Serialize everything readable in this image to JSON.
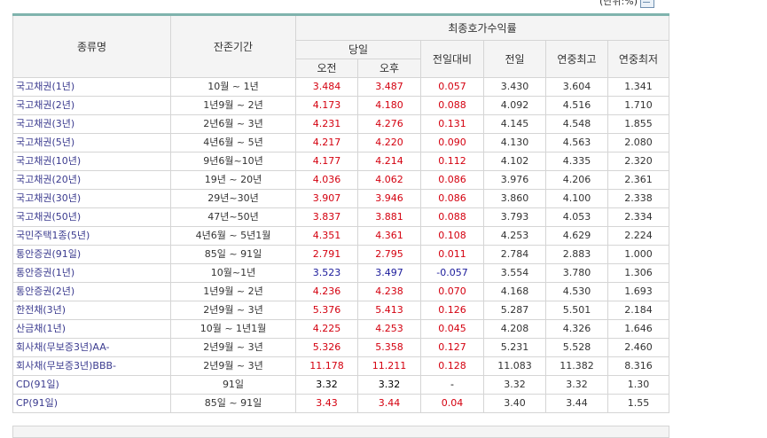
{
  "unit_label": "(단위:%)",
  "icons": {
    "export": "excel-export-icon"
  },
  "header": {
    "name": "종류명",
    "term": "잔존기간",
    "group": "최종호가수익률",
    "today": "당일",
    "am": "오전",
    "pm": "오후",
    "diff": "전일대비",
    "prev": "전일",
    "year_high": "연중최고",
    "year_low": "연중최저"
  },
  "colors": {
    "up": "#d4000f",
    "down": "#1b1b9b",
    "header_bg": "#f4f4f4",
    "top_border": "#7fb3ad"
  },
  "rows": [
    {
      "name": "국고채권(1년)",
      "term": "10월 ~ 1년",
      "am": "3.484",
      "pm": "3.487",
      "diff": "0.057",
      "prev": "3.430",
      "high": "3.604",
      "low": "1.341",
      "dir": "up"
    },
    {
      "name": "국고채권(2년)",
      "term": "1년9월 ~ 2년",
      "am": "4.173",
      "pm": "4.180",
      "diff": "0.088",
      "prev": "4.092",
      "high": "4.516",
      "low": "1.710",
      "dir": "up"
    },
    {
      "name": "국고채권(3년)",
      "term": "2년6월 ~ 3년",
      "am": "4.231",
      "pm": "4.276",
      "diff": "0.131",
      "prev": "4.145",
      "high": "4.548",
      "low": "1.855",
      "dir": "up"
    },
    {
      "name": "국고채권(5년)",
      "term": "4년6월 ~ 5년",
      "am": "4.217",
      "pm": "4.220",
      "diff": "0.090",
      "prev": "4.130",
      "high": "4.563",
      "low": "2.080",
      "dir": "up"
    },
    {
      "name": "국고채권(10년)",
      "term": "9년6월~10년",
      "am": "4.177",
      "pm": "4.214",
      "diff": "0.112",
      "prev": "4.102",
      "high": "4.335",
      "low": "2.320",
      "dir": "up"
    },
    {
      "name": "국고채권(20년)",
      "term": "19년 ~ 20년",
      "am": "4.036",
      "pm": "4.062",
      "diff": "0.086",
      "prev": "3.976",
      "high": "4.206",
      "low": "2.361",
      "dir": "up"
    },
    {
      "name": "국고채권(30년)",
      "term": "29년~30년",
      "am": "3.907",
      "pm": "3.946",
      "diff": "0.086",
      "prev": "3.860",
      "high": "4.100",
      "low": "2.338",
      "dir": "up"
    },
    {
      "name": "국고채권(50년)",
      "term": "47년~50년",
      "am": "3.837",
      "pm": "3.881",
      "diff": "0.088",
      "prev": "3.793",
      "high": "4.053",
      "low": "2.334",
      "dir": "up"
    },
    {
      "name": "국민주택1종(5년)",
      "term": "4년6월 ~ 5년1월",
      "am": "4.351",
      "pm": "4.361",
      "diff": "0.108",
      "prev": "4.253",
      "high": "4.629",
      "low": "2.224",
      "dir": "up"
    },
    {
      "name": "통안증권(91일)",
      "term": "85일 ~ 91일",
      "am": "2.791",
      "pm": "2.795",
      "diff": "0.011",
      "prev": "2.784",
      "high": "2.883",
      "low": "1.000",
      "dir": "up"
    },
    {
      "name": "통안증권(1년)",
      "term": "10월~1년",
      "am": "3.523",
      "pm": "3.497",
      "diff": "-0.057",
      "prev": "3.554",
      "high": "3.780",
      "low": "1.306",
      "dir": "down"
    },
    {
      "name": "통안증권(2년)",
      "term": "1년9월 ~ 2년",
      "am": "4.236",
      "pm": "4.238",
      "diff": "0.070",
      "prev": "4.168",
      "high": "4.530",
      "low": "1.693",
      "dir": "up"
    },
    {
      "name": "한전채(3년)",
      "term": "2년9월 ~ 3년",
      "am": "5.376",
      "pm": "5.413",
      "diff": "0.126",
      "prev": "5.287",
      "high": "5.501",
      "low": "2.184",
      "dir": "up"
    },
    {
      "name": "산금채(1년)",
      "term": "10월 ~ 1년1월",
      "am": "4.225",
      "pm": "4.253",
      "diff": "0.045",
      "prev": "4.208",
      "high": "4.326",
      "low": "1.646",
      "dir": "up"
    },
    {
      "name": "회사채(무보증3년)AA-",
      "term": "2년9월 ~ 3년",
      "am": "5.326",
      "pm": "5.358",
      "diff": "0.127",
      "prev": "5.231",
      "high": "5.528",
      "low": "2.460",
      "dir": "up"
    },
    {
      "name": "회사채(무보증3년)BBB-",
      "term": "2년9월 ~ 3년",
      "am": "11.178",
      "pm": "11.211",
      "diff": "0.128",
      "prev": "11.083",
      "high": "11.382",
      "low": "8.316",
      "dir": "up"
    },
    {
      "name": "CD(91일)",
      "term": "91일",
      "am": "3.32",
      "pm": "3.32",
      "diff": "-",
      "prev": "3.32",
      "high": "3.32",
      "low": "1.30",
      "dir": "flat"
    },
    {
      "name": "CP(91일)",
      "term": "85일 ~ 91일",
      "am": "3.43",
      "pm": "3.44",
      "diff": "0.04",
      "prev": "3.40",
      "high": "3.44",
      "low": "1.55",
      "dir": "up"
    }
  ]
}
